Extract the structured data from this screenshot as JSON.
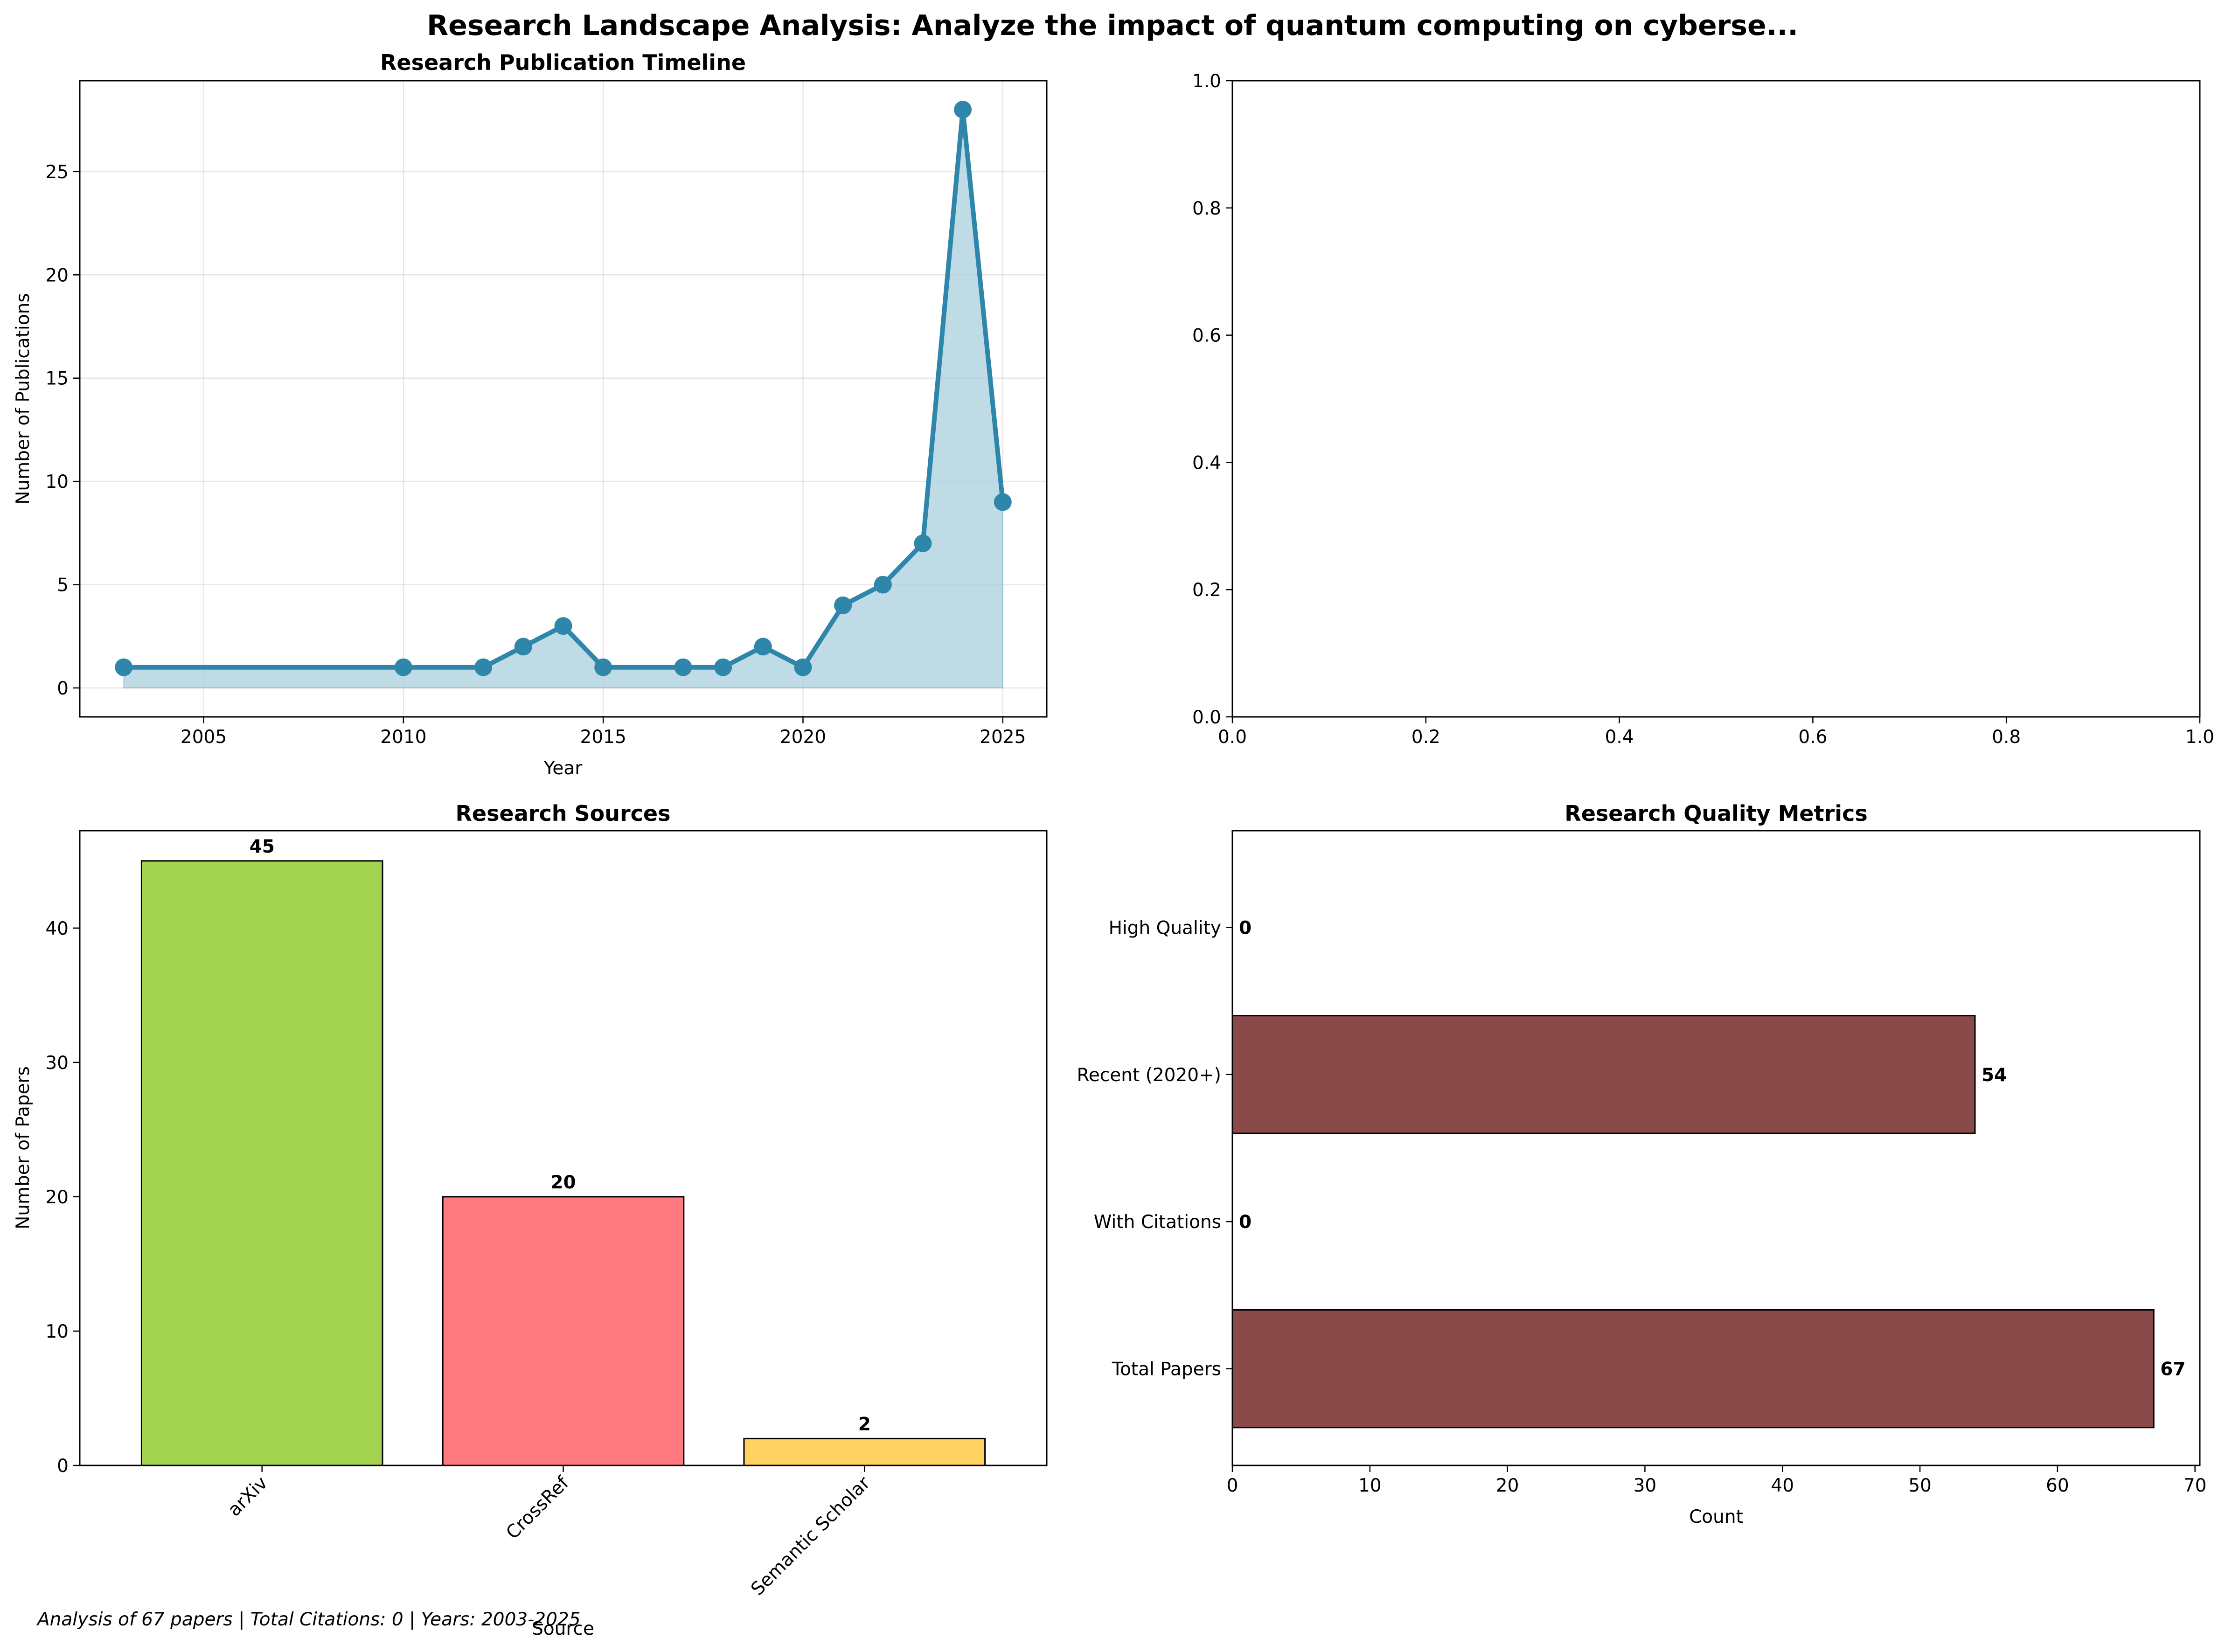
{
  "suptitle": "Research Landscape Analysis: Analyze the impact of quantum computing on cyberse...",
  "footer": "Analysis of 67 papers | Total Citations: 0 | Years: 2003-2025",
  "chart_data": [
    {
      "type": "area",
      "title": "Research Publication Timeline",
      "xlabel": "Year",
      "ylabel": "Number of Publications",
      "x": [
        2003,
        2010,
        2012,
        2013,
        2014,
        2015,
        2017,
        2018,
        2019,
        2020,
        2021,
        2022,
        2023,
        2024,
        2025
      ],
      "y": [
        1,
        1,
        1,
        2,
        3,
        1,
        1,
        1,
        2,
        1,
        4,
        5,
        7,
        28,
        9
      ],
      "xlim": [
        2001.9,
        2026.1
      ],
      "ylim": [
        -1.4,
        29.4
      ],
      "xticks": [
        2005,
        2010,
        2015,
        2020,
        2025
      ],
      "yticks": [
        0,
        5,
        10,
        15,
        20,
        25
      ],
      "line_color": "#2e86ab",
      "fill_color": "#a9cfdd",
      "grid": true
    },
    {
      "type": "empty",
      "title": "",
      "xlim": [
        0,
        1
      ],
      "ylim": [
        0,
        1
      ],
      "xticks": [
        "0.0",
        "0.2",
        "0.4",
        "0.6",
        "0.8",
        "1.0"
      ],
      "yticks": [
        "0.0",
        "0.2",
        "0.4",
        "0.6",
        "0.8",
        "1.0"
      ]
    },
    {
      "type": "bar",
      "title": "Research Sources",
      "xlabel": "Source",
      "ylabel": "Number of Papers",
      "categories": [
        "arXiv",
        "CrossRef",
        "Semantic Scholar"
      ],
      "values": [
        45,
        20,
        2
      ],
      "colors": [
        "#a4d350",
        "#ff7a80",
        "#ffd262"
      ],
      "ylim": [
        0,
        47.25
      ],
      "yticks": [
        0,
        10,
        20,
        30,
        40
      ]
    },
    {
      "type": "barh",
      "title": "Research Quality Metrics",
      "xlabel": "Count",
      "categories": [
        "Total Papers",
        "With Citations",
        "Recent (2020+)",
        "High Quality"
      ],
      "values": [
        67,
        0,
        54,
        0
      ],
      "color": "#8b4a4a",
      "xlim": [
        0,
        70.35
      ],
      "xticks": [
        0,
        10,
        20,
        30,
        40,
        50,
        60,
        70
      ]
    }
  ]
}
